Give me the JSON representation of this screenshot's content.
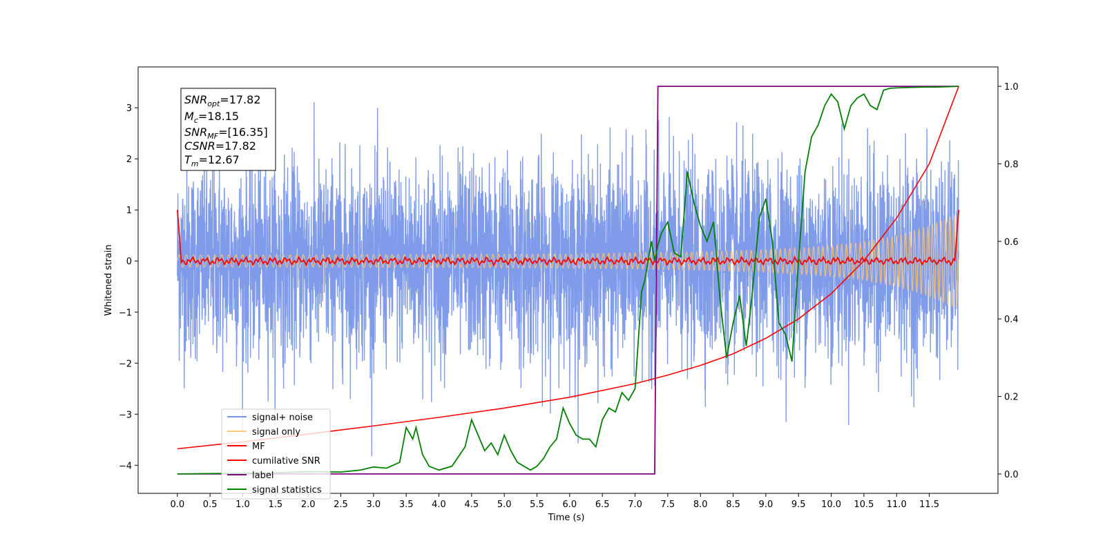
{
  "chart_data": {
    "type": "line",
    "xlabel": "Time (s)",
    "ylabel": "Whitened strain",
    "xlim": [
      -0.6,
      12.55
    ],
    "ylim_left": [
      -4.55,
      3.8
    ],
    "ylim_right": [
      -0.05,
      1.05
    ],
    "x_ticks": [
      0.0,
      0.5,
      1.0,
      1.5,
      2.0,
      2.5,
      3.0,
      3.5,
      4.0,
      4.5,
      5.0,
      5.5,
      6.0,
      6.5,
      7.0,
      7.5,
      8.0,
      8.5,
      9.0,
      9.5,
      10.0,
      10.5,
      11.0,
      11.5
    ],
    "x_tick_labels": [
      "0.0",
      "0.5",
      "1.0",
      "1.5",
      "2.0",
      "2.5",
      "3.0",
      "3.5",
      "4.0",
      "4.5",
      "5.0",
      "5.5",
      "6.0",
      "6.5",
      "7.0",
      "7.5",
      "8.0",
      "8.5",
      "9.0",
      "9.5",
      "10.0",
      "10.5",
      "11.0",
      "11.5"
    ],
    "y_left_ticks": [
      -4,
      -3,
      -2,
      -1,
      0,
      1,
      2,
      3
    ],
    "y_left_tick_labels": [
      "−4",
      "−3",
      "−2",
      "−1",
      "0",
      "1",
      "2",
      "3"
    ],
    "y_right_ticks": [
      0.0,
      0.2,
      0.4,
      0.6,
      0.8,
      1.0
    ],
    "y_right_tick_labels": [
      "0.0",
      "0.2",
      "0.4",
      "0.6",
      "0.8",
      "1.0"
    ],
    "grid": false,
    "legend_position": "lower-left",
    "series": [
      {
        "name": "signal+ noise",
        "axis": "left",
        "color": "#7896e8",
        "description_values": {
          "x_start": 0.0,
          "x_end": 11.95,
          "noise_sigma": 1.0,
          "range": [
            -4.15,
            3.45
          ]
        }
      },
      {
        "name": "signal only",
        "axis": "left",
        "color": "#ffc876",
        "envelope": {
          "x": [
            0.0,
            2.0,
            4.0,
            6.0,
            8.0,
            9.0,
            10.0,
            10.5,
            11.0,
            11.5,
            11.95
          ],
          "amp": [
            0.12,
            0.12,
            0.13,
            0.14,
            0.18,
            0.22,
            0.3,
            0.38,
            0.5,
            0.7,
            0.95
          ]
        }
      },
      {
        "name": "MF",
        "axis": "left",
        "color": "#ff0000",
        "values_note": "fluctuates around 0 with amplitude ~0.07; spikes to 1.0 at both ends",
        "endpoints": {
          "x": [
            0.0,
            11.95
          ],
          "y": [
            1.0,
            1.0
          ]
        }
      },
      {
        "name": "cumilative SNR",
        "axis": "right",
        "color": "#ff0000",
        "x": [
          0.0,
          1.0,
          2.0,
          3.0,
          4.0,
          5.0,
          6.0,
          7.0,
          7.5,
          8.0,
          8.5,
          9.0,
          9.5,
          10.0,
          10.5,
          11.0,
          11.5,
          11.95
        ],
        "y": [
          0.065,
          0.083,
          0.103,
          0.124,
          0.146,
          0.17,
          0.198,
          0.233,
          0.255,
          0.28,
          0.31,
          0.35,
          0.4,
          0.465,
          0.55,
          0.66,
          0.8,
          1.0
        ]
      },
      {
        "name": "label",
        "axis": "right",
        "color": "#800080",
        "x": [
          0.0,
          7.3,
          7.35,
          11.95
        ],
        "y": [
          0.0,
          0.0,
          1.0,
          1.0
        ]
      },
      {
        "name": "signal statistics",
        "axis": "right",
        "color": "#008000",
        "x": [
          0.0,
          0.5,
          1.0,
          1.5,
          2.0,
          2.5,
          2.8,
          3.0,
          3.2,
          3.4,
          3.5,
          3.6,
          3.65,
          3.75,
          3.85,
          4.0,
          4.2,
          4.4,
          4.5,
          4.6,
          4.7,
          4.8,
          4.9,
          5.0,
          5.1,
          5.2,
          5.3,
          5.4,
          5.5,
          5.6,
          5.7,
          5.8,
          5.9,
          6.0,
          6.1,
          6.2,
          6.3,
          6.4,
          6.5,
          6.6,
          6.7,
          6.8,
          6.9,
          7.0,
          7.1,
          7.15,
          7.25,
          7.3,
          7.35,
          7.4,
          7.5,
          7.6,
          7.7,
          7.8,
          7.85,
          7.9,
          8.0,
          8.1,
          8.2,
          8.3,
          8.4,
          8.5,
          8.6,
          8.7,
          8.75,
          8.8,
          8.9,
          9.0,
          9.1,
          9.2,
          9.3,
          9.4,
          9.5,
          9.6,
          9.7,
          9.8,
          9.9,
          10.0,
          10.1,
          10.2,
          10.3,
          10.4,
          10.5,
          10.6,
          10.7,
          10.8,
          10.9,
          11.0,
          11.2,
          11.4,
          11.6,
          11.8,
          11.95
        ],
        "y": [
          0.0,
          0.001,
          0.002,
          0.003,
          0.006,
          0.005,
          0.01,
          0.018,
          0.015,
          0.03,
          0.12,
          0.09,
          0.12,
          0.05,
          0.02,
          0.01,
          0.02,
          0.07,
          0.14,
          0.1,
          0.06,
          0.08,
          0.05,
          0.1,
          0.06,
          0.03,
          0.02,
          0.01,
          0.02,
          0.04,
          0.07,
          0.09,
          0.17,
          0.13,
          0.1,
          0.09,
          0.09,
          0.07,
          0.14,
          0.17,
          0.16,
          0.21,
          0.19,
          0.22,
          0.47,
          0.5,
          0.6,
          0.55,
          0.59,
          0.62,
          0.65,
          0.57,
          0.56,
          0.78,
          0.74,
          0.7,
          0.64,
          0.6,
          0.65,
          0.45,
          0.3,
          0.39,
          0.46,
          0.33,
          0.4,
          0.48,
          0.66,
          0.71,
          0.6,
          0.39,
          0.36,
          0.29,
          0.55,
          0.78,
          0.87,
          0.9,
          0.95,
          0.98,
          0.96,
          0.89,
          0.95,
          0.97,
          0.98,
          0.95,
          0.94,
          0.99,
          0.995,
          0.996,
          0.997,
          0.998,
          0.998,
          0.999,
          1.0
        ]
      }
    ]
  },
  "annotation": {
    "snr_opt": {
      "base": "SNR",
      "sub": "opt",
      "value": "=17.82"
    },
    "mc": {
      "base": "M",
      "sub": "c",
      "value": "=18.15"
    },
    "snr_mf": {
      "base": "SNR",
      "sub": "MF",
      "value": "=[16.35]"
    },
    "csnr": {
      "base": "CSNR",
      "value": "=17.82"
    },
    "tm": {
      "base": "T",
      "sub": "m",
      "value": "=12.67"
    }
  },
  "legend": {
    "items": [
      {
        "label": "signal+ noise",
        "color": "#7896e8"
      },
      {
        "label": "signal only",
        "color": "#ffc876"
      },
      {
        "label": "MF",
        "color": "#ff0000"
      },
      {
        "label": "cumilative SNR",
        "color": "#ff0000"
      },
      {
        "label": "label",
        "color": "#800080"
      },
      {
        "label": "signal statistics",
        "color": "#008000"
      }
    ]
  }
}
